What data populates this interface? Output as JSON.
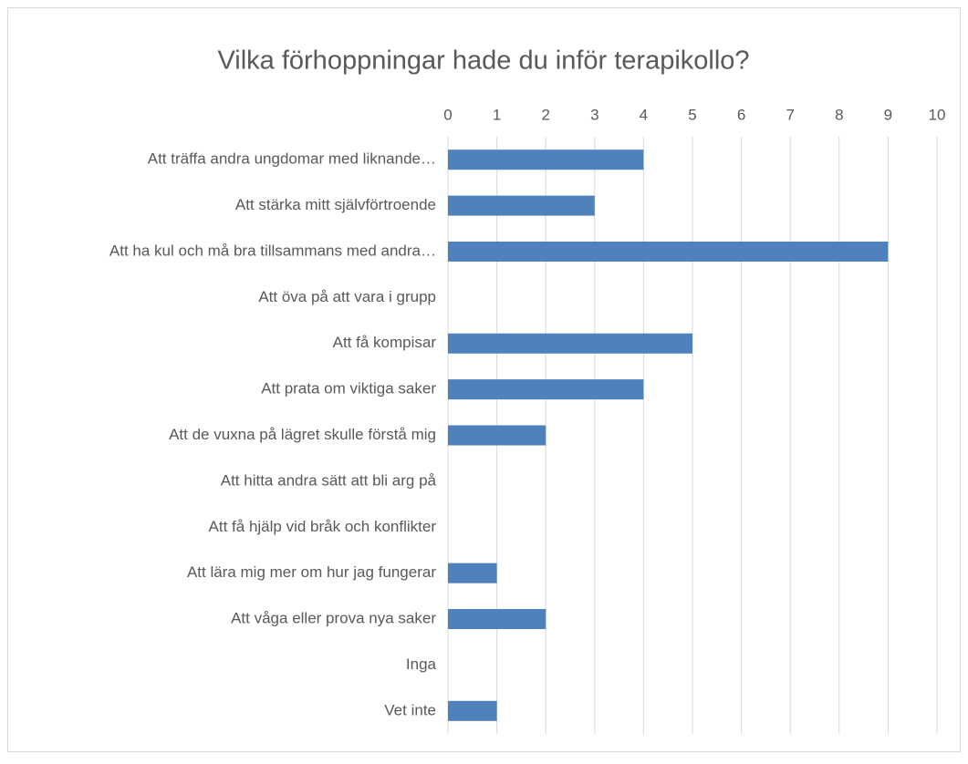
{
  "chart_data": {
    "type": "bar",
    "orientation": "horizontal",
    "title": "Vilka förhoppningar hade du inför terapikollo?",
    "categories": [
      "Att träffa andra ungdomar med liknande…",
      "Att stärka mitt självförtroende",
      "Att ha kul och må bra tillsammans med andra…",
      "Att öva på att vara i grupp",
      "Att få kompisar",
      "Att prata om viktiga saker",
      "Att de vuxna på lägret skulle förstå mig",
      "Att hitta andra sätt att bli arg på",
      "Att få hjälp vid bråk och konflikter",
      "Att lära mig mer om hur jag fungerar",
      "Att våga eller prova nya saker",
      "Inga",
      "Vet inte"
    ],
    "values": [
      4,
      3,
      9,
      0,
      5,
      4,
      2,
      0,
      0,
      1,
      2,
      0,
      1
    ],
    "color": "#4f81bd",
    "xlim": [
      0,
      10
    ],
    "xticks": [
      0,
      1,
      2,
      3,
      4,
      5,
      6,
      7,
      8,
      9,
      10
    ],
    "grid": true
  }
}
